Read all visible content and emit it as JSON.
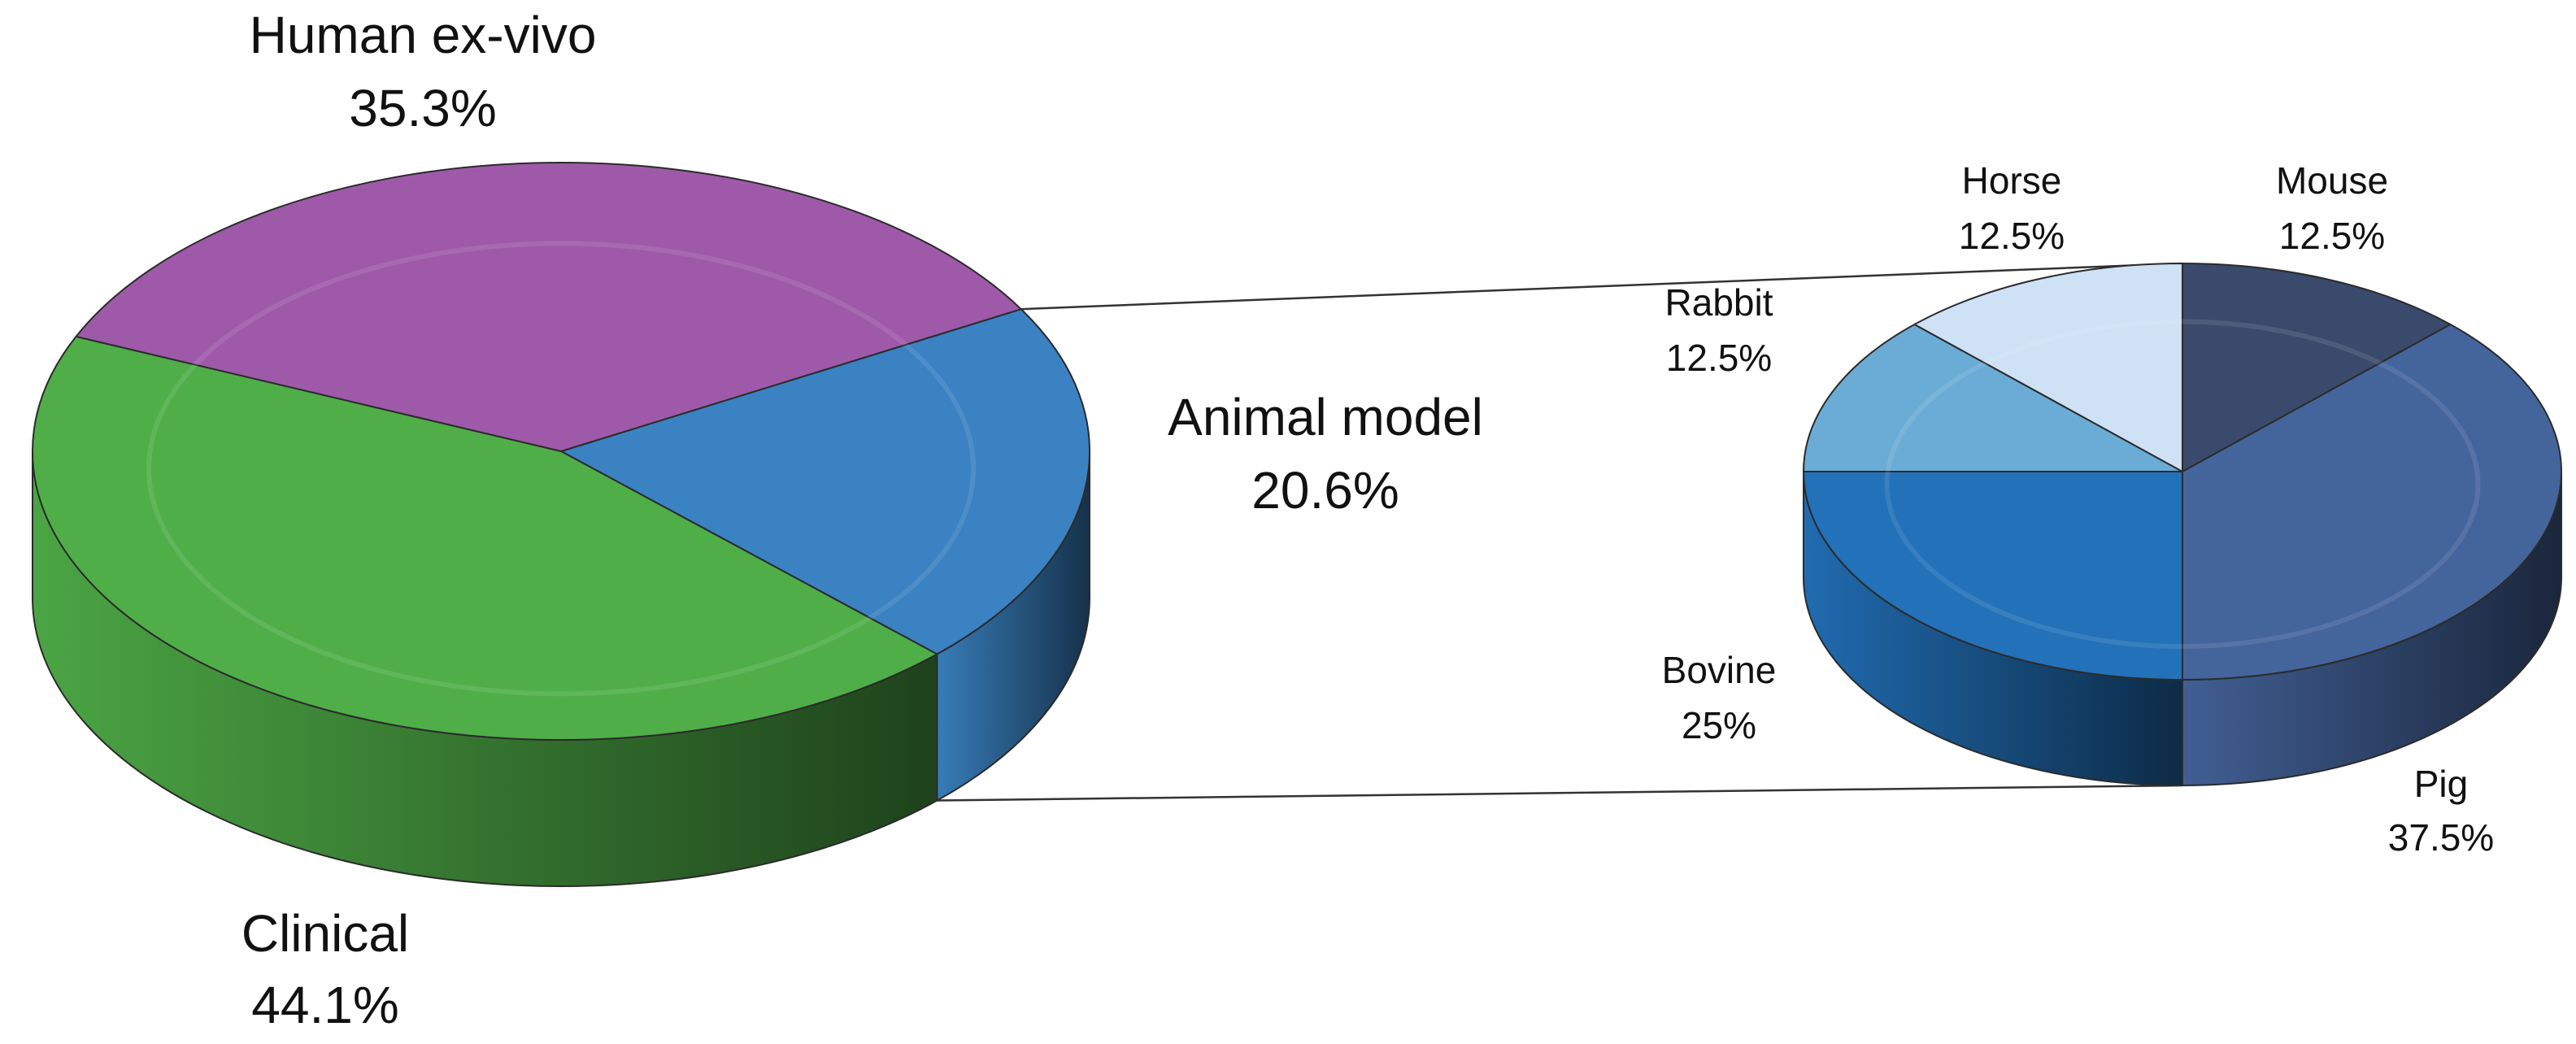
{
  "chart_data": [
    {
      "type": "pie",
      "variant": "3d-pie",
      "slices": [
        {
          "label": "Human ex-vivo",
          "value": 35.3,
          "value_label": "35.3%",
          "color": "#9e5aa9"
        },
        {
          "label": "Animal model",
          "value": 20.6,
          "value_label": "20.6%",
          "color": "#3a82c2"
        },
        {
          "label": "Clinical",
          "value": 44.1,
          "value_label": "44.1%",
          "color": "#4fae48"
        }
      ]
    },
    {
      "type": "pie",
      "variant": "3d-pie",
      "breakdown_of": "Animal model",
      "slices": [
        {
          "label": "Mouse",
          "value": 12.5,
          "value_label": "12.5%",
          "color": "#3a4a6c"
        },
        {
          "label": "Pig",
          "value": 37.5,
          "value_label": "37.5%",
          "color": "#44649c"
        },
        {
          "label": "Bovine",
          "value": 25,
          "value_label": "25%",
          "color": "#2271b9"
        },
        {
          "label": "Rabbit",
          "value": 12.5,
          "value_label": "12.5%",
          "color": "#6aacd6"
        },
        {
          "label": "Horse",
          "value": 12.5,
          "value_label": "12.5%",
          "color": "#cfe1f5"
        }
      ]
    }
  ]
}
